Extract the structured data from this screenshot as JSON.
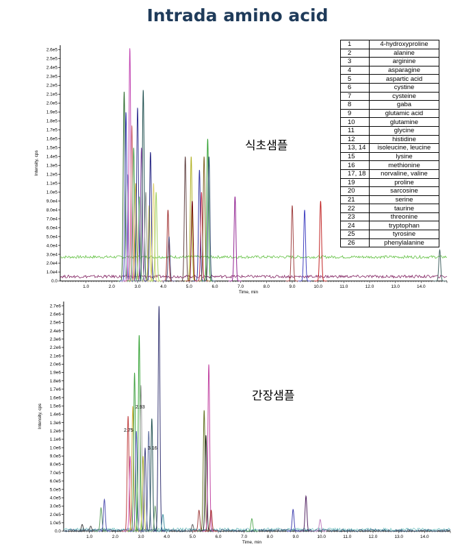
{
  "title": "Intrada amino acid",
  "compound_table": [
    {
      "no": "1",
      "name": "4-hydroxyproline"
    },
    {
      "no": "2",
      "name": "alanine"
    },
    {
      "no": "3",
      "name": "arginine"
    },
    {
      "no": "4",
      "name": "asparagine"
    },
    {
      "no": "5",
      "name": "aspartic acid"
    },
    {
      "no": "6",
      "name": "cystine"
    },
    {
      "no": "7",
      "name": "cysteine"
    },
    {
      "no": "8",
      "name": "gaba"
    },
    {
      "no": "9",
      "name": "glutamic acid"
    },
    {
      "no": "10",
      "name": "glutamine"
    },
    {
      "no": "11",
      "name": "glycine"
    },
    {
      "no": "12",
      "name": "histidine"
    },
    {
      "no": "13, 14",
      "name": "isoleucine, leucine"
    },
    {
      "no": "15",
      "name": "lysine"
    },
    {
      "no": "16",
      "name": "methionine"
    },
    {
      "no": "17, 18",
      "name": "norvaline, valine"
    },
    {
      "no": "19",
      "name": "proline"
    },
    {
      "no": "20",
      "name": "sarcosine"
    },
    {
      "no": "21",
      "name": "serine"
    },
    {
      "no": "22",
      "name": "taurine"
    },
    {
      "no": "23",
      "name": "threonine"
    },
    {
      "no": "24",
      "name": "tryptophan"
    },
    {
      "no": "25",
      "name": "tyrosine"
    },
    {
      "no": "26",
      "name": "phenylalanine"
    }
  ],
  "chart_data": [
    {
      "type": "line",
      "annotation": "식초샘플",
      "xlabel": "Time, min",
      "ylabel": "Intensity, cps",
      "xlim": [
        0,
        15
      ],
      "ylim": [
        0,
        265000.0
      ],
      "x_ticks": [
        1.0,
        2.0,
        3.0,
        4.0,
        5.0,
        6.0,
        7.0,
        8.0,
        9.0,
        10.0,
        11.0,
        12.0,
        13.0,
        14.0
      ],
      "y_ticks": [
        "0.0",
        "1.0e4",
        "2.0e4",
        "3.0e4",
        "4.0e4",
        "5.0e4",
        "6.0e4",
        "7.0e4",
        "8.0e4",
        "9.0e4",
        "1.0e5",
        "1.1e5",
        "1.2e5",
        "1.3e5",
        "1.4e5",
        "1.5e5",
        "1.6e5",
        "1.7e5",
        "1.8e5",
        "1.9e5",
        "2.0e5",
        "2.1e5",
        "2.2e5",
        "2.3e5",
        "2.4e5",
        "2.5e5",
        "2.6e5"
      ],
      "peaks": [
        {
          "rt": 2.48,
          "height": 213000,
          "color": "#2d6a2d"
        },
        {
          "rt": 2.55,
          "height": 190000,
          "color": "#3b3bb5"
        },
        {
          "rt": 2.62,
          "height": 120000,
          "color": "#a0a0d0"
        },
        {
          "rt": 2.7,
          "height": 262000,
          "color": "#c040b0"
        },
        {
          "rt": 2.78,
          "height": 175000,
          "color": "#d07070"
        },
        {
          "rt": 2.85,
          "height": 150000,
          "color": "#50a050"
        },
        {
          "rt": 2.93,
          "height": 110000,
          "color": "#c0a030"
        },
        {
          "rt": 3.0,
          "height": 195000,
          "color": "#303090"
        },
        {
          "rt": 3.07,
          "height": 95000,
          "color": "#70c070"
        },
        {
          "rt": 3.15,
          "height": 150000,
          "color": "#8040a0"
        },
        {
          "rt": 3.22,
          "height": 215000,
          "color": "#205050"
        },
        {
          "rt": 3.32,
          "height": 100000,
          "color": "#909090"
        },
        {
          "rt": 3.45,
          "height": 85000,
          "color": "#d0d040"
        },
        {
          "rt": 3.5,
          "height": 145000,
          "color": "#202080"
        },
        {
          "rt": 3.62,
          "height": 110000,
          "color": "#e0d070"
        },
        {
          "rt": 3.72,
          "height": 100000,
          "color": "#a0d060"
        },
        {
          "rt": 4.18,
          "height": 80000,
          "color": "#a03030"
        },
        {
          "rt": 4.22,
          "height": 50000,
          "color": "#505080"
        },
        {
          "rt": 4.85,
          "height": 140000,
          "color": "#604040"
        },
        {
          "rt": 5.08,
          "height": 140000,
          "color": "#b0b020"
        },
        {
          "rt": 5.12,
          "height": 90000,
          "color": "#700000"
        },
        {
          "rt": 5.4,
          "height": 125000,
          "color": "#3030a0"
        },
        {
          "rt": 5.48,
          "height": 100000,
          "color": "#c03050"
        },
        {
          "rt": 5.58,
          "height": 140000,
          "color": "#806020"
        },
        {
          "rt": 5.72,
          "height": 160000,
          "color": "#30a030"
        },
        {
          "rt": 5.77,
          "height": 140000,
          "color": "#204060"
        },
        {
          "rt": 6.78,
          "height": 95000,
          "color": "#902090"
        },
        {
          "rt": 9.0,
          "height": 85000,
          "color": "#a04040"
        },
        {
          "rt": 9.48,
          "height": 80000,
          "color": "#4040c0"
        },
        {
          "rt": 10.1,
          "height": 90000,
          "color": "#c02020"
        },
        {
          "rt": 14.72,
          "height": 35000,
          "color": "#406060"
        }
      ],
      "baselines": [
        {
          "level": 27000,
          "color": "#60c040"
        },
        {
          "level": 5000,
          "color": "#802060"
        }
      ]
    },
    {
      "type": "line",
      "annotation": "간장샘플",
      "xlabel": "Time, min",
      "ylabel": "Intensity, cps",
      "xlim": [
        0,
        15
      ],
      "ylim": [
        0,
        2750000.0
      ],
      "x_ticks": [
        1.0,
        2.0,
        3.0,
        4.0,
        5.0,
        6.0,
        7.0,
        8.0,
        9.0,
        10.0,
        11.0,
        12.0,
        13.0,
        14.0
      ],
      "y_ticks": [
        "0.0",
        "1.0e5",
        "2.0e5",
        "3.0e5",
        "4.0e5",
        "5.0e5",
        "6.0e5",
        "7.0e5",
        "8.0e5",
        "9.0e5",
        "1.0e6",
        "1.1e6",
        "1.2e6",
        "1.3e6",
        "1.4e6",
        "1.5e6",
        "1.6e6",
        "1.7e6",
        "1.8e6",
        "1.9e6",
        "2.0e6",
        "2.1e6",
        "2.2e6",
        "2.3e6",
        "2.4e6",
        "2.5e6",
        "2.6e6",
        "2.7e6"
      ],
      "peak_labels": [
        "2.75",
        "2.93",
        "3.16"
      ],
      "peaks": [
        {
          "rt": 0.72,
          "height": 80000,
          "color": "#404040"
        },
        {
          "rt": 1.05,
          "height": 60000,
          "color": "#505050"
        },
        {
          "rt": 1.45,
          "height": 280000,
          "color": "#60a060"
        },
        {
          "rt": 1.58,
          "height": 380000,
          "color": "#5050b0"
        },
        {
          "rt": 2.5,
          "height": 1380000,
          "color": "#c04040"
        },
        {
          "rt": 2.58,
          "height": 900000,
          "color": "#d060c0"
        },
        {
          "rt": 2.68,
          "height": 1500000,
          "color": "#d0b040"
        },
        {
          "rt": 2.75,
          "height": 1900000,
          "color": "#40a040"
        },
        {
          "rt": 2.82,
          "height": 1200000,
          "color": "#6060c0"
        },
        {
          "rt": 2.93,
          "height": 2350000,
          "color": "#30a030"
        },
        {
          "rt": 3.0,
          "height": 1750000,
          "color": "#a0a0a0"
        },
        {
          "rt": 3.08,
          "height": 900000,
          "color": "#c0c040"
        },
        {
          "rt": 3.16,
          "height": 1000000,
          "color": "#404080"
        },
        {
          "rt": 3.3,
          "height": 1200000,
          "color": "#6070a0"
        },
        {
          "rt": 3.42,
          "height": 1350000,
          "color": "#205050"
        },
        {
          "rt": 3.55,
          "height": 300000,
          "color": "#70a070"
        },
        {
          "rt": 3.7,
          "height": 2700000,
          "color": "#303070"
        },
        {
          "rt": 3.85,
          "height": 200000,
          "color": "#4090a0"
        },
        {
          "rt": 5.0,
          "height": 80000,
          "color": "#606060"
        },
        {
          "rt": 5.25,
          "height": 250000,
          "color": "#a04040"
        },
        {
          "rt": 5.45,
          "height": 1450000,
          "color": "#607020"
        },
        {
          "rt": 5.52,
          "height": 1150000,
          "color": "#202020"
        },
        {
          "rt": 5.63,
          "height": 2000000,
          "color": "#c040a0"
        },
        {
          "rt": 5.72,
          "height": 250000,
          "color": "#a02020"
        },
        {
          "rt": 7.3,
          "height": 150000,
          "color": "#60b060"
        },
        {
          "rt": 8.9,
          "height": 260000,
          "color": "#4040b0"
        },
        {
          "rt": 9.4,
          "height": 420000,
          "color": "#502060"
        },
        {
          "rt": 9.95,
          "height": 140000,
          "color": "#c080c0"
        }
      ],
      "baselines": [
        {
          "level": 20000,
          "color": "#70c0c0"
        },
        {
          "level": 8000,
          "color": "#406080"
        }
      ]
    }
  ]
}
